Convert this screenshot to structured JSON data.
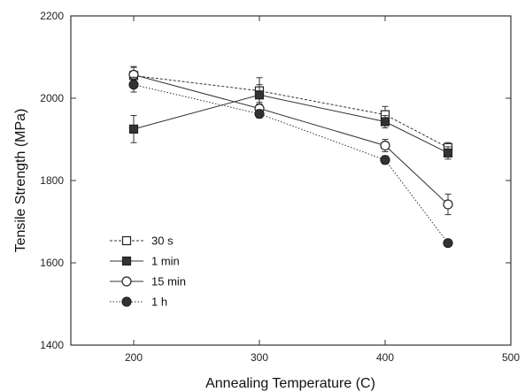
{
  "chart_data": {
    "type": "line",
    "title": "",
    "xlabel": "Annealing Temperature (C)",
    "ylabel": "Tensile Strength (MPa)",
    "xlim": [
      150,
      500
    ],
    "ylim": [
      1400,
      2200
    ],
    "xticks": [
      200,
      300,
      400,
      500
    ],
    "yticks": [
      1400,
      1600,
      1800,
      2000,
      2200
    ],
    "x": [
      200,
      300,
      400,
      450
    ],
    "grid": false,
    "legend_position": "bottom-left",
    "series": [
      {
        "name": "30 s",
        "marker": "open-square",
        "line": "dashed",
        "values": [
          2055,
          2018,
          1960,
          1880
        ],
        "errors": [
          20,
          32,
          20,
          12
        ]
      },
      {
        "name": "1 min",
        "marker": "filled-square",
        "line": "solid",
        "values": [
          1925,
          2008,
          1943,
          1867
        ],
        "errors": [
          33,
          25,
          15,
          15
        ]
      },
      {
        "name": "15 min",
        "marker": "open-circle",
        "line": "solid",
        "values": [
          2057,
          1975,
          1885,
          1742
        ],
        "errors": [
          20,
          15,
          15,
          25
        ]
      },
      {
        "name": "1 h",
        "marker": "filled-circle",
        "line": "dotted",
        "values": [
          2033,
          1962,
          1850,
          1648
        ],
        "errors": [
          18,
          10,
          10,
          8
        ]
      }
    ]
  }
}
